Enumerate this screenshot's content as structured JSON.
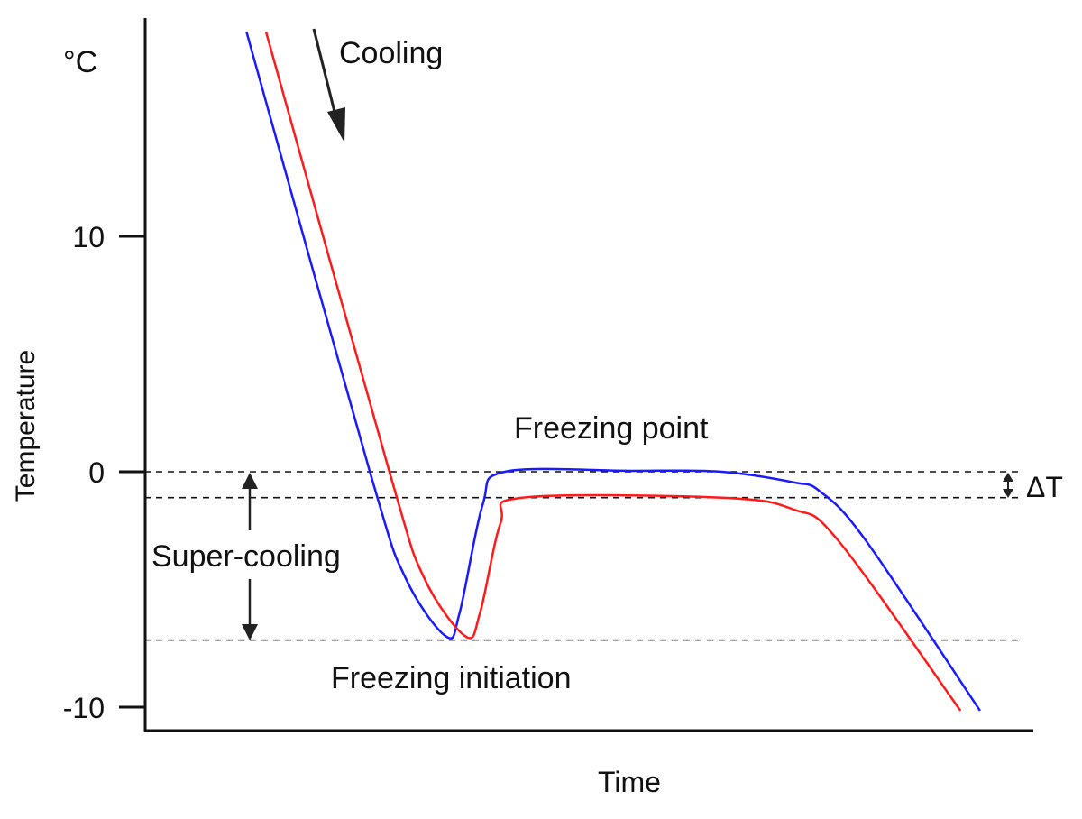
{
  "chart_data": {
    "type": "line",
    "title": "",
    "xlabel": "Time",
    "ylabel": "Temperature",
    "yunit": "°C",
    "xlim": [
      0,
      100
    ],
    "ylim": [
      -11,
      19.3
    ],
    "yticks": [
      10,
      0,
      -10
    ],
    "ytick_labels": [
      "10",
      "0",
      "-10"
    ],
    "grid": false,
    "series": [
      {
        "color": "#1a1aff",
        "x": [
          11.5,
          25.4,
          29.4,
          34.0,
          35.5,
          38.1,
          40.6,
          54.8,
          65.0,
          73.1,
          76.1,
          81.2,
          94.1
        ],
        "y": [
          18.7,
          0,
          -4.5,
          -7.0,
          -6.0,
          -1.4,
          0,
          0.04,
          0,
          -0.45,
          -0.84,
          -2.9,
          -10.15
        ]
      },
      {
        "color": "#ff1a1a",
        "x": [
          13.7,
          27.6,
          31.5,
          36.2,
          37.8,
          40.1,
          42.6,
          65.0,
          73.1,
          78.2,
          91.9
        ],
        "y": [
          18.7,
          0,
          -4.5,
          -7.0,
          -6.0,
          -2.2,
          -1.1,
          -1.1,
          -1.6,
          -2.95,
          -10.15
        ]
      }
    ],
    "reference_lines": [
      {
        "y": 0,
        "style": "dashed"
      },
      {
        "y": -1.1,
        "style": "dashed"
      },
      {
        "y": -7.15,
        "style": "dashed"
      }
    ],
    "annotations": {
      "cooling": "Cooling",
      "freezing_point": "Freezing point",
      "super_cooling": "Super-cooling",
      "freezing_initiation": "Freezing initiation",
      "delta_t": "ΔT"
    }
  }
}
